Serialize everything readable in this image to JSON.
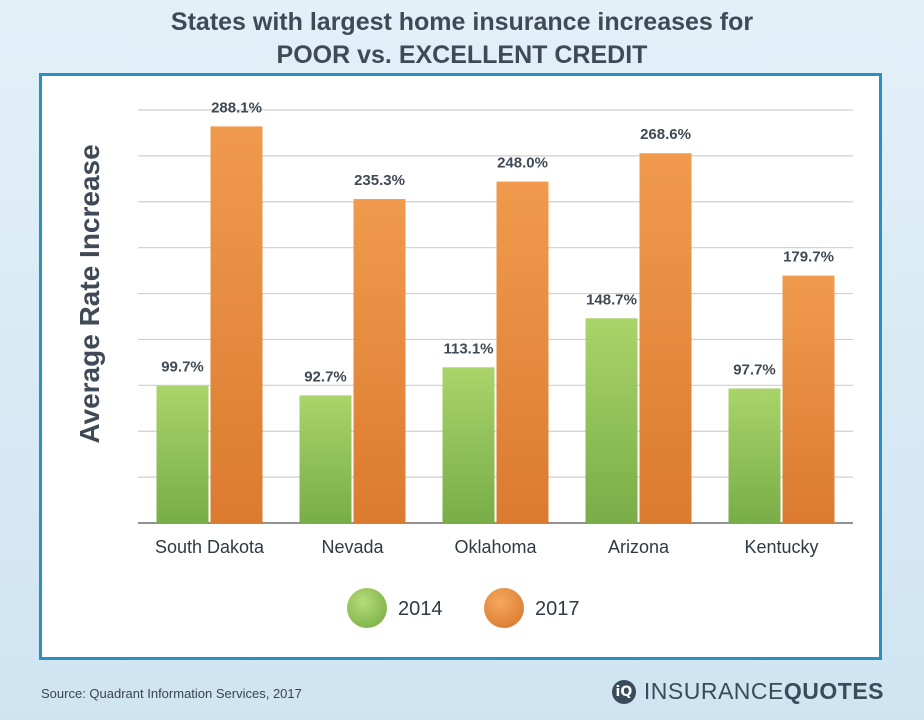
{
  "chart_data": {
    "type": "bar",
    "title": "States with largest home insurance increases for",
    "subtitle": "POOR vs. EXCELLENT CREDIT",
    "ylabel": "Average Rate Increase",
    "xlabel": "",
    "categories": [
      "South Dakota",
      "Nevada",
      "Oklahoma",
      "Arizona",
      "Kentucky"
    ],
    "series": [
      {
        "name": "2014",
        "values": [
          99.7,
          92.7,
          113.1,
          148.7,
          97.7
        ],
        "labels": [
          "99.7%",
          "92.7%",
          "113.1%",
          "148.7%",
          "97.7%"
        ],
        "color": "#8ec45a"
      },
      {
        "name": "2017",
        "values": [
          288.1,
          235.3,
          248.0,
          268.6,
          179.7
        ],
        "labels": [
          "288.1%",
          "235.3%",
          "248.0%",
          "268.6%",
          "179.7%"
        ],
        "color": "#ea8f42"
      }
    ],
    "ylim": [
      0,
      300
    ],
    "grid": true,
    "legend": "bottom-center"
  },
  "footer": {
    "source": "Source:  Quadrant Information Services, 2017",
    "logo_mark": "iQ",
    "logo_word_a": "INSURANCE",
    "logo_word_b": "QUOTES"
  }
}
